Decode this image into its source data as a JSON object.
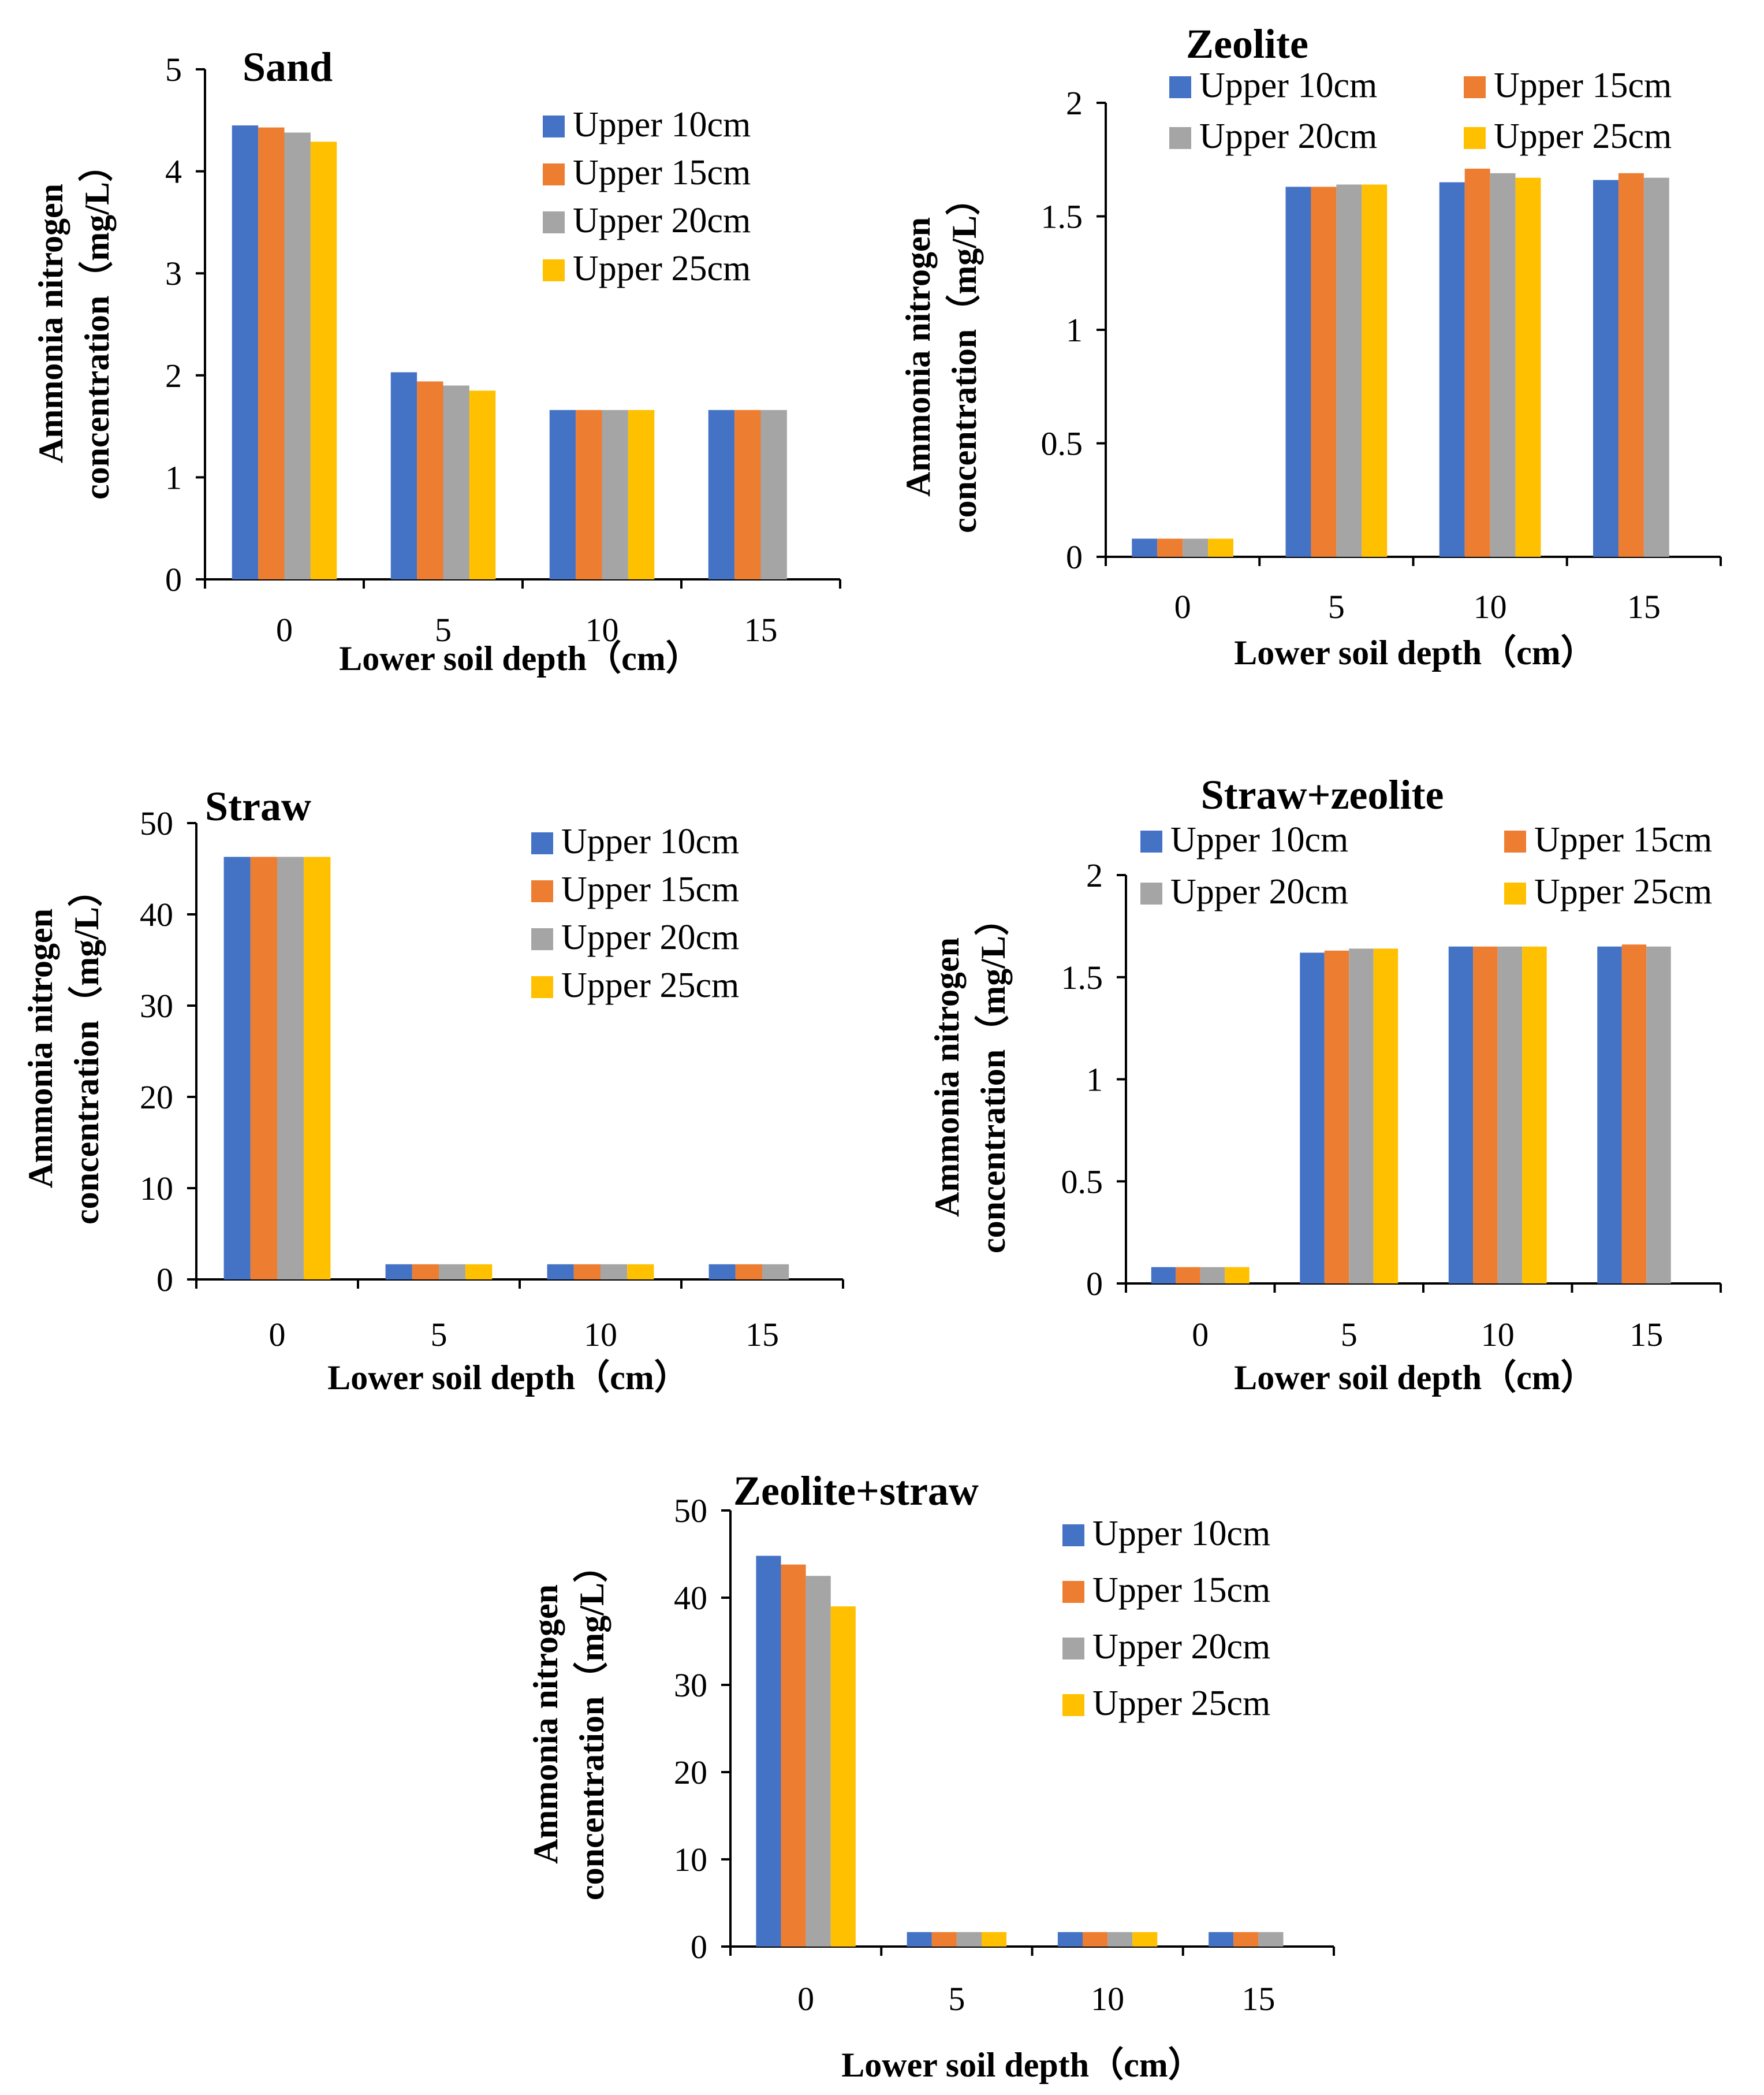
{
  "chart_data": [
    {
      "type": "bar",
      "title": "Sand",
      "xlabel": "Lower soil depth（cm）",
      "ylabel_line1": "Ammonia nitrogen",
      "ylabel_line2": "concentration（mg/L）",
      "categories": [
        "0",
        "5",
        "10",
        "15"
      ],
      "ylim": [
        0,
        5
      ],
      "yticks": [
        "0",
        "1",
        "2",
        "3",
        "4",
        "5"
      ],
      "legend_position": "top-right",
      "series": [
        {
          "name": "Upper 10cm",
          "values": [
            4.45,
            2.03,
            1.66,
            1.66
          ]
        },
        {
          "name": "Upper 15cm",
          "values": [
            4.43,
            1.94,
            1.66,
            1.66
          ]
        },
        {
          "name": "Upper 20cm",
          "values": [
            4.38,
            1.9,
            1.66,
            1.66
          ]
        },
        {
          "name": "Upper 25cm",
          "values": [
            4.29,
            1.85,
            1.66,
            null
          ]
        }
      ]
    },
    {
      "type": "bar",
      "title": "Zeolite",
      "xlabel": "Lower soil depth（cm）",
      "ylabel_line1": "Ammonia nitrogen",
      "ylabel_line2": "concentration（mg/L）",
      "categories": [
        "0",
        "5",
        "10",
        "15"
      ],
      "ylim": [
        0,
        2
      ],
      "yticks": [
        "0",
        "0.5",
        "1",
        "1.5",
        "2"
      ],
      "legend_position": "top",
      "series": [
        {
          "name": "Upper 10cm",
          "values": [
            0.08,
            1.63,
            1.65,
            1.66
          ]
        },
        {
          "name": "Upper 15cm",
          "values": [
            0.08,
            1.63,
            1.71,
            1.69
          ]
        },
        {
          "name": "Upper 20cm",
          "values": [
            0.08,
            1.64,
            1.69,
            1.67
          ]
        },
        {
          "name": "Upper 25cm",
          "values": [
            0.08,
            1.64,
            1.67,
            null
          ]
        }
      ]
    },
    {
      "type": "bar",
      "title": "Straw",
      "xlabel": "Lower soil depth（cm）",
      "ylabel_line1": "Ammonia nitrogen",
      "ylabel_line2": "concentration（mg/L）",
      "categories": [
        "0",
        "5",
        "10",
        "15"
      ],
      "ylim": [
        0,
        50
      ],
      "yticks": [
        "0",
        "10",
        "20",
        "30",
        "40",
        "50"
      ],
      "legend_position": "top-right",
      "series": [
        {
          "name": "Upper 10cm",
          "values": [
            46.3,
            1.66,
            1.66,
            1.66
          ]
        },
        {
          "name": "Upper 15cm",
          "values": [
            46.3,
            1.66,
            1.66,
            1.66
          ]
        },
        {
          "name": "Upper 20cm",
          "values": [
            46.3,
            1.66,
            1.66,
            1.66
          ]
        },
        {
          "name": "Upper 25cm",
          "values": [
            46.3,
            1.66,
            1.66,
            null
          ]
        }
      ]
    },
    {
      "type": "bar",
      "title": "Straw+zeolite",
      "xlabel": "Lower soil depth（cm）",
      "ylabel_line1": "Ammonia nitrogen",
      "ylabel_line2": "concentration（mg/L）",
      "categories": [
        "0",
        "5",
        "10",
        "15"
      ],
      "ylim": [
        0,
        2
      ],
      "yticks": [
        "0",
        "0.5",
        "1",
        "1.5",
        "2"
      ],
      "legend_position": "top",
      "series": [
        {
          "name": "Upper 10cm",
          "values": [
            0.08,
            1.62,
            1.65,
            1.65
          ]
        },
        {
          "name": "Upper 15cm",
          "values": [
            0.08,
            1.63,
            1.65,
            1.66
          ]
        },
        {
          "name": "Upper 20cm",
          "values": [
            0.08,
            1.64,
            1.65,
            1.65
          ]
        },
        {
          "name": "Upper 25cm",
          "values": [
            0.08,
            1.64,
            1.65,
            null
          ]
        }
      ]
    },
    {
      "type": "bar",
      "title": "Zeolite+straw",
      "xlabel": "Lower soil depth（cm）",
      "ylabel_line1": "Ammonia nitrogen",
      "ylabel_line2": "concentration（mg/L）",
      "categories": [
        "0",
        "5",
        "10",
        "15"
      ],
      "ylim": [
        0,
        50
      ],
      "yticks": [
        "0",
        "10",
        "20",
        "30",
        "40",
        "50"
      ],
      "legend_position": "top-right",
      "series": [
        {
          "name": "Upper 10cm",
          "values": [
            44.8,
            1.66,
            1.66,
            1.66
          ]
        },
        {
          "name": "Upper 15cm",
          "values": [
            43.8,
            1.66,
            1.66,
            1.66
          ]
        },
        {
          "name": "Upper 20cm",
          "values": [
            42.5,
            1.66,
            1.66,
            1.66
          ]
        },
        {
          "name": "Upper 25cm",
          "values": [
            39.0,
            1.66,
            1.66,
            null
          ]
        }
      ]
    }
  ],
  "series_colors": [
    "#4472C4",
    "#ED7D31",
    "#A5A5A5",
    "#FFC000"
  ]
}
